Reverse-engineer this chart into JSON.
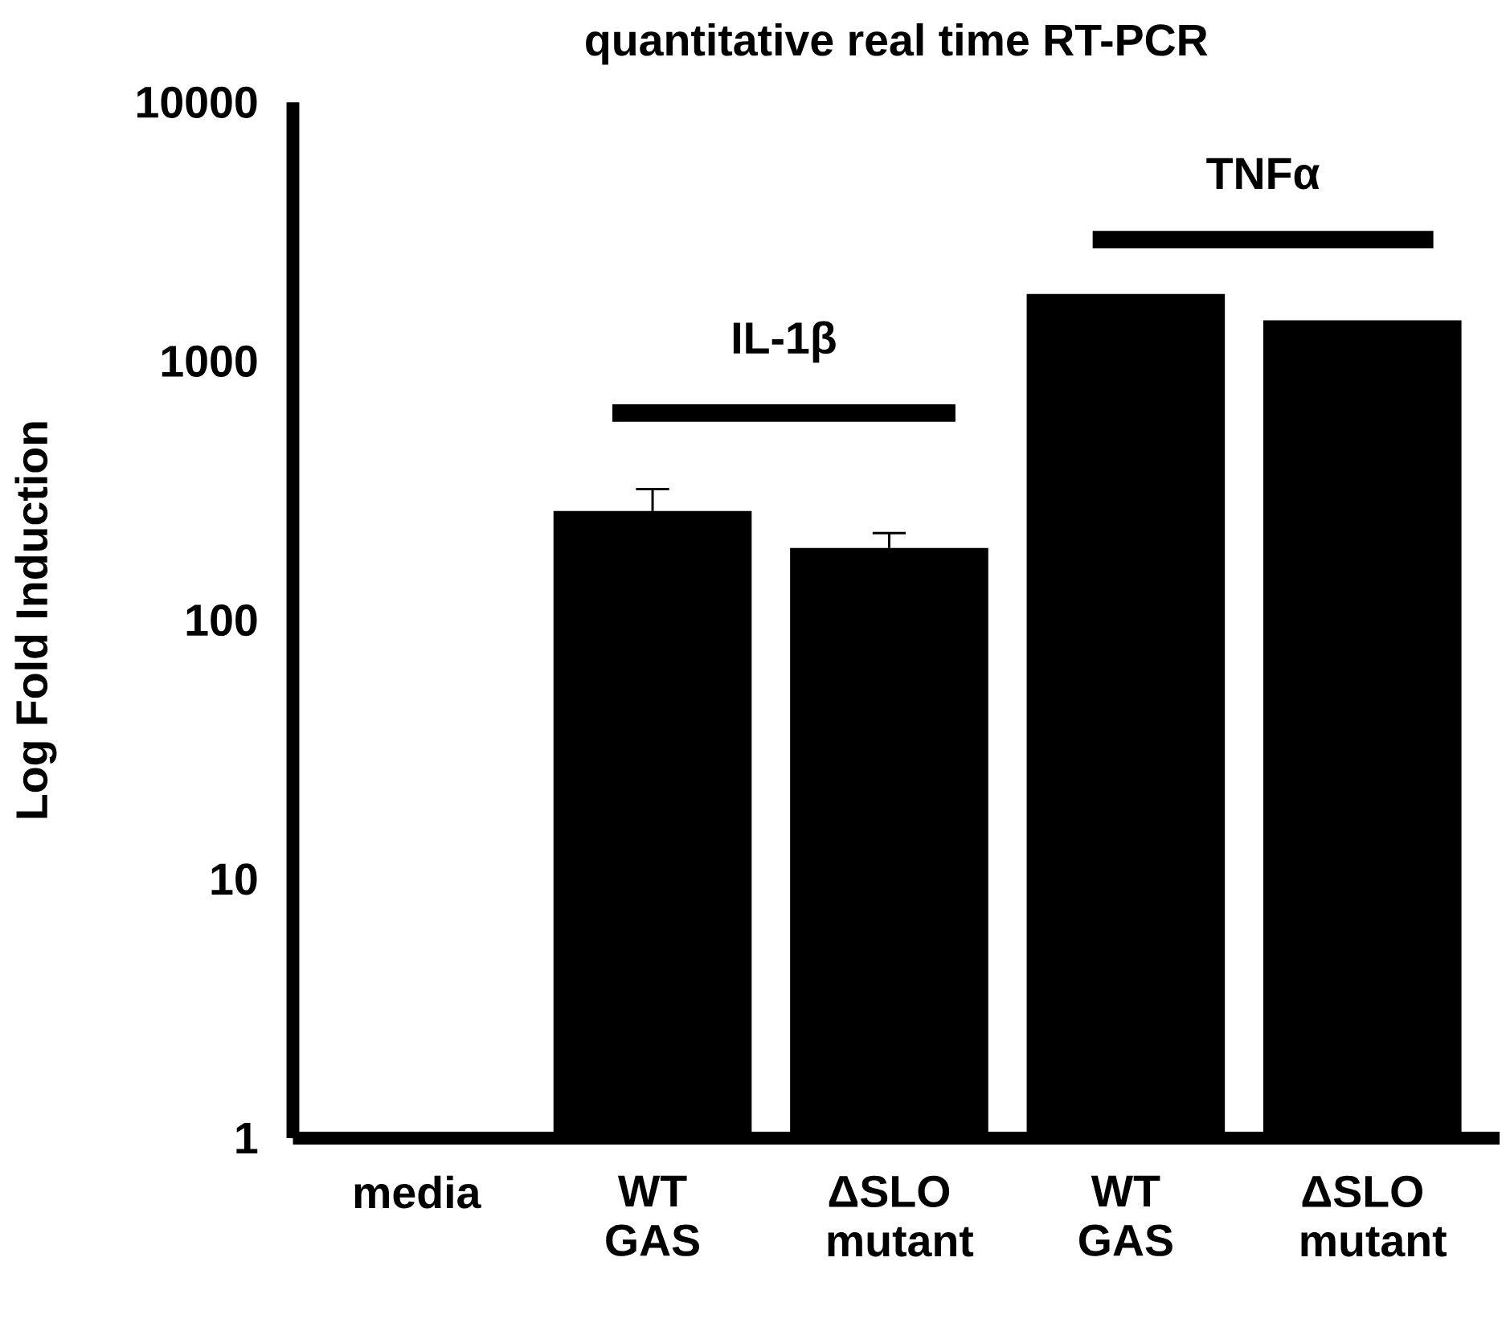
{
  "chart_data": {
    "type": "bar",
    "title": "quantitative real time RT-PCR",
    "ylabel": "Log Fold Induction",
    "categories": [
      "media",
      "WT GAS",
      "ΔSLO mutant",
      "WT GAS",
      "ΔSLO mutant"
    ],
    "values": [
      1,
      264,
      190,
      1820,
      1440
    ],
    "errors": [
      null,
      [
        264,
        321
      ],
      [
        190,
        217
      ],
      null,
      null
    ],
    "color": "#000000",
    "log": true,
    "ylim": [
      1,
      10000
    ],
    "yticks": [
      1,
      10,
      100,
      1000,
      10000
    ],
    "annotations": [
      "IL-1β",
      "TNFα"
    ],
    "grid": false
  }
}
